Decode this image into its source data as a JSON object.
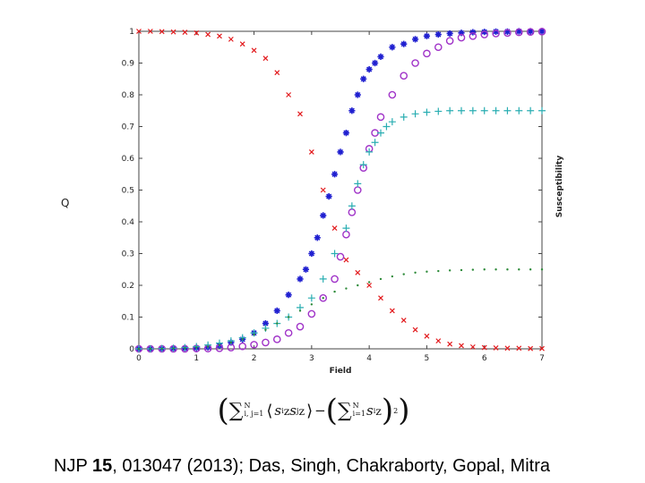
{
  "chart_data": {
    "type": "scatter",
    "title": "",
    "xlabel": "Field",
    "ylabel_left": "Q",
    "ylabel_right": "Susceptibility",
    "xlim": [
      0,
      7
    ],
    "ylim": [
      0,
      1
    ],
    "xticks": [
      0,
      1,
      2,
      3,
      4,
      5,
      6,
      7
    ],
    "yticks": [
      0,
      0.1,
      0.2,
      0.3,
      0.4,
      0.5,
      0.6,
      0.7,
      0.8,
      0.9,
      1
    ],
    "grid": false,
    "series": [
      {
        "name": "decreasing (x markers)",
        "marker": "x",
        "color": "#e2191c",
        "x": [
          0,
          0.2,
          0.4,
          0.6,
          0.8,
          1.0,
          1.2,
          1.4,
          1.6,
          1.8,
          2.0,
          2.2,
          2.4,
          2.6,
          2.8,
          3.0,
          3.2,
          3.4,
          3.6,
          3.8,
          4.0,
          4.2,
          4.4,
          4.6,
          4.8,
          5.0,
          5.2,
          5.4,
          5.6,
          5.8,
          6.0,
          6.2,
          6.4,
          6.6,
          6.8,
          7.0
        ],
        "y": [
          1.0,
          1.0,
          0.999,
          0.998,
          0.997,
          0.995,
          0.99,
          0.985,
          0.975,
          0.96,
          0.94,
          0.915,
          0.87,
          0.8,
          0.74,
          0.62,
          0.5,
          0.38,
          0.28,
          0.24,
          0.2,
          0.16,
          0.12,
          0.09,
          0.06,
          0.04,
          0.025,
          0.015,
          0.01,
          0.006,
          0.004,
          0.003,
          0.002,
          0.002,
          0.001,
          0.001
        ]
      },
      {
        "name": "increasing (* markers)",
        "marker": "*",
        "color": "#1f1fd0",
        "x": [
          0,
          0.2,
          0.4,
          0.6,
          0.8,
          1.0,
          1.2,
          1.4,
          1.6,
          1.8,
          2.0,
          2.2,
          2.4,
          2.6,
          2.8,
          2.9,
          3.0,
          3.1,
          3.2,
          3.3,
          3.4,
          3.5,
          3.6,
          3.7,
          3.8,
          3.9,
          4.0,
          4.1,
          4.2,
          4.4,
          4.6,
          4.8,
          5.0,
          5.2,
          5.4,
          5.6,
          5.8,
          6.0,
          6.2,
          6.4,
          6.6,
          6.8,
          7.0
        ],
        "y": [
          0.0,
          0.0,
          0.0,
          0.001,
          0.002,
          0.003,
          0.005,
          0.01,
          0.02,
          0.03,
          0.05,
          0.08,
          0.12,
          0.17,
          0.22,
          0.25,
          0.3,
          0.35,
          0.42,
          0.48,
          0.55,
          0.62,
          0.68,
          0.75,
          0.8,
          0.85,
          0.88,
          0.9,
          0.92,
          0.95,
          0.96,
          0.975,
          0.985,
          0.99,
          0.993,
          0.995,
          0.997,
          0.998,
          0.999,
          0.999,
          1.0,
          1.0,
          1.0
        ]
      },
      {
        "name": "increasing (o markers)",
        "marker": "o",
        "color": "#a033c8",
        "x": [
          0,
          0.2,
          0.4,
          0.6,
          0.8,
          1.0,
          1.2,
          1.4,
          1.6,
          1.8,
          2.0,
          2.2,
          2.4,
          2.6,
          2.8,
          3.0,
          3.2,
          3.4,
          3.5,
          3.6,
          3.7,
          3.8,
          3.9,
          4.0,
          4.1,
          4.2,
          4.4,
          4.6,
          4.8,
          5.0,
          5.2,
          5.4,
          5.6,
          5.8,
          6.0,
          6.2,
          6.4,
          6.6,
          6.8,
          7.0
        ],
        "y": [
          0.0,
          0.0,
          0.0,
          0.0,
          0.0,
          0.001,
          0.001,
          0.002,
          0.004,
          0.008,
          0.013,
          0.02,
          0.03,
          0.05,
          0.07,
          0.11,
          0.16,
          0.22,
          0.29,
          0.36,
          0.43,
          0.5,
          0.57,
          0.63,
          0.68,
          0.73,
          0.8,
          0.86,
          0.9,
          0.93,
          0.95,
          0.97,
          0.98,
          0.985,
          0.99,
          0.993,
          0.995,
          0.997,
          0.998,
          0.999
        ]
      },
      {
        "name": "increasing (+ markers)",
        "marker": "+",
        "color": "#2aaeb2",
        "x": [
          0,
          0.2,
          0.4,
          0.6,
          0.8,
          1.0,
          1.2,
          1.4,
          1.6,
          1.8,
          2.0,
          2.2,
          2.4,
          2.6,
          2.8,
          3.0,
          3.2,
          3.4,
          3.6,
          3.7,
          3.8,
          3.9,
          4.0,
          4.1,
          4.2,
          4.3,
          4.4,
          4.6,
          4.8,
          5.0,
          5.2,
          5.4,
          5.6,
          5.8,
          6.0,
          6.2,
          6.4,
          6.6,
          6.8,
          7.0
        ],
        "y": [
          0.0,
          0.0,
          0.001,
          0.002,
          0.004,
          0.007,
          0.012,
          0.018,
          0.025,
          0.035,
          0.05,
          0.065,
          0.08,
          0.1,
          0.13,
          0.16,
          0.22,
          0.3,
          0.38,
          0.45,
          0.52,
          0.58,
          0.62,
          0.65,
          0.68,
          0.7,
          0.715,
          0.73,
          0.74,
          0.745,
          0.748,
          0.75,
          0.75,
          0.75,
          0.75,
          0.75,
          0.75,
          0.75,
          0.75,
          0.75
        ]
      },
      {
        "name": "susceptibility (dots)",
        "marker": ".",
        "color": "#2e8b3a",
        "x": [
          0,
          0.2,
          0.4,
          0.6,
          0.8,
          1.0,
          1.2,
          1.4,
          1.6,
          1.8,
          2.0,
          2.2,
          2.4,
          2.6,
          2.8,
          3.0,
          3.2,
          3.4,
          3.6,
          3.8,
          4.0,
          4.2,
          4.4,
          4.6,
          4.8,
          5.0,
          5.2,
          5.4,
          5.6,
          5.8,
          6.0,
          6.2,
          6.4,
          6.6,
          6.8,
          7.0
        ],
        "y": [
          0.0,
          0.0,
          0.0,
          0.001,
          0.002,
          0.004,
          0.007,
          0.012,
          0.02,
          0.03,
          0.045,
          0.06,
          0.08,
          0.1,
          0.12,
          0.14,
          0.16,
          0.18,
          0.19,
          0.2,
          0.21,
          0.22,
          0.228,
          0.235,
          0.24,
          0.243,
          0.245,
          0.247,
          0.248,
          0.249,
          0.25,
          0.25,
          0.25,
          0.25,
          0.25,
          0.25
        ]
      }
    ]
  },
  "formula": {
    "open_paren": "(",
    "sigma": "∑",
    "sum1_upper": "N",
    "sum1_lower": "i, j=1",
    "langle": "⟨",
    "term1": "s",
    "term1_sup": "i",
    "term1_sub": "z",
    "term2": "s",
    "term2_sup": "j",
    "term2_sub": "z",
    "rangle": "⟩",
    "minus": " − ",
    "sum2_upper": "N",
    "sum2_lower": "i=1",
    "term3": "s",
    "term3_sup": "i",
    "term3_sub": "z",
    "square": "2",
    "close_paren": ")"
  },
  "citation": {
    "journal": "NJP",
    "volume": "15",
    "rest": ", 013047 (2013); Das, Singh, Chakraborty, Gopal, Mitra"
  }
}
